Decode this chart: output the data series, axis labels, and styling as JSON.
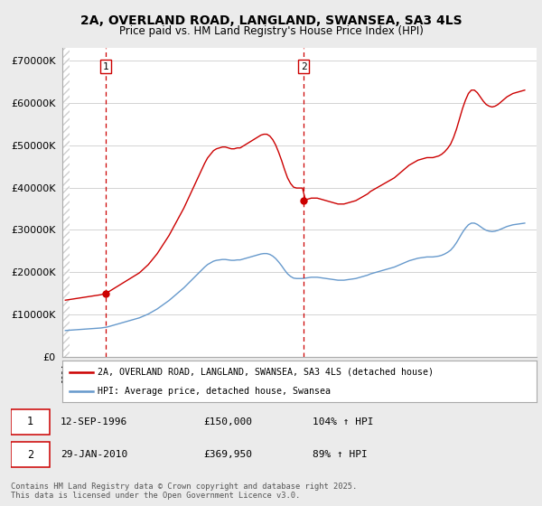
{
  "title": "2A, OVERLAND ROAD, LANGLAND, SWANSEA, SA3 4LS",
  "subtitle": "Price paid vs. HM Land Registry's House Price Index (HPI)",
  "legend_line1": "2A, OVERLAND ROAD, LANGLAND, SWANSEA, SA3 4LS (detached house)",
  "legend_line2": "HPI: Average price, detached house, Swansea",
  "annotation1_date": "12-SEP-1996",
  "annotation1_price": "£150,000",
  "annotation1_hpi": "104% ↑ HPI",
  "annotation2_date": "29-JAN-2010",
  "annotation2_price": "£369,950",
  "annotation2_hpi": "89% ↑ HPI",
  "footnote": "Contains HM Land Registry data © Crown copyright and database right 2025.\nThis data is licensed under the Open Government Licence v3.0.",
  "purchase1_x": 1996.71,
  "purchase1_y": 150000,
  "purchase2_x": 2010.08,
  "purchase2_y": 369950,
  "property_color": "#cc0000",
  "hpi_color": "#6699cc",
  "vline_color": "#cc0000",
  "yticks": [
    0,
    100000,
    200000,
    300000,
    400000,
    500000,
    600000,
    700000
  ],
  "ylim": [
    0,
    730000
  ],
  "xlim_start": 1993.8,
  "xlim_end": 2025.8,
  "background_color": "#ebebeb",
  "plot_bg_color": "#ffffff",
  "grid_color": "#cccccc",
  "hpi_data_years": [
    1994.0,
    1994.2,
    1994.4,
    1994.6,
    1994.8,
    1995.0,
    1995.2,
    1995.4,
    1995.6,
    1995.8,
    1996.0,
    1996.2,
    1996.4,
    1996.6,
    1996.8,
    1997.0,
    1997.2,
    1997.4,
    1997.6,
    1997.8,
    1998.0,
    1998.2,
    1998.4,
    1998.6,
    1998.8,
    1999.0,
    1999.2,
    1999.4,
    1999.6,
    1999.8,
    2000.0,
    2000.2,
    2000.4,
    2000.6,
    2000.8,
    2001.0,
    2001.2,
    2001.4,
    2001.6,
    2001.8,
    2002.0,
    2002.2,
    2002.4,
    2002.6,
    2002.8,
    2003.0,
    2003.2,
    2003.4,
    2003.6,
    2003.8,
    2004.0,
    2004.2,
    2004.4,
    2004.6,
    2004.8,
    2005.0,
    2005.2,
    2005.4,
    2005.6,
    2005.8,
    2006.0,
    2006.2,
    2006.4,
    2006.6,
    2006.8,
    2007.0,
    2007.2,
    2007.4,
    2007.6,
    2007.8,
    2008.0,
    2008.2,
    2008.4,
    2008.6,
    2008.8,
    2009.0,
    2009.2,
    2009.4,
    2009.6,
    2009.8,
    2010.0,
    2010.2,
    2010.4,
    2010.6,
    2010.8,
    2011.0,
    2011.2,
    2011.4,
    2011.6,
    2011.8,
    2012.0,
    2012.2,
    2012.4,
    2012.6,
    2012.8,
    2013.0,
    2013.2,
    2013.4,
    2013.6,
    2013.8,
    2014.0,
    2014.2,
    2014.4,
    2014.6,
    2014.8,
    2015.0,
    2015.2,
    2015.4,
    2015.6,
    2015.8,
    2016.0,
    2016.2,
    2016.4,
    2016.6,
    2016.8,
    2017.0,
    2017.2,
    2017.4,
    2017.6,
    2017.8,
    2018.0,
    2018.2,
    2018.4,
    2018.6,
    2018.8,
    2019.0,
    2019.2,
    2019.4,
    2019.6,
    2019.8,
    2020.0,
    2020.2,
    2020.4,
    2020.6,
    2020.8,
    2021.0,
    2021.2,
    2021.4,
    2021.6,
    2021.8,
    2022.0,
    2022.2,
    2022.4,
    2022.6,
    2022.8,
    2023.0,
    2023.2,
    2023.4,
    2023.6,
    2023.8,
    2024.0,
    2024.2,
    2024.4,
    2024.6,
    2024.8,
    2025.0
  ],
  "hpi_values": [
    62000,
    62500,
    63000,
    63500,
    64000,
    64500,
    65000,
    65500,
    66000,
    66500,
    67000,
    67500,
    68000,
    69000,
    70000,
    72000,
    74000,
    76000,
    78000,
    80000,
    82000,
    84000,
    86000,
    88000,
    90000,
    92000,
    95000,
    98000,
    101000,
    105000,
    109000,
    113000,
    118000,
    123000,
    128000,
    133000,
    139000,
    145000,
    151000,
    157000,
    163000,
    170000,
    177000,
    184000,
    191000,
    198000,
    205000,
    212000,
    218000,
    222000,
    226000,
    228000,
    229000,
    230000,
    230000,
    229000,
    228000,
    228000,
    229000,
    229000,
    231000,
    233000,
    235000,
    237000,
    239000,
    241000,
    243000,
    244000,
    244000,
    242000,
    238000,
    232000,
    224000,
    215000,
    205000,
    196000,
    190000,
    186000,
    185000,
    185000,
    185000,
    186000,
    187000,
    188000,
    188000,
    188000,
    187000,
    186000,
    185000,
    184000,
    183000,
    182000,
    181000,
    181000,
    181000,
    182000,
    183000,
    184000,
    185000,
    187000,
    189000,
    191000,
    193000,
    196000,
    198000,
    200000,
    202000,
    204000,
    206000,
    208000,
    210000,
    212000,
    215000,
    218000,
    221000,
    224000,
    227000,
    229000,
    231000,
    233000,
    234000,
    235000,
    236000,
    236000,
    236000,
    237000,
    238000,
    240000,
    243000,
    247000,
    252000,
    260000,
    270000,
    282000,
    294000,
    304000,
    312000,
    316000,
    316000,
    313000,
    308000,
    303000,
    299000,
    297000,
    296000,
    297000,
    299000,
    302000,
    305000,
    308000,
    310000,
    312000,
    313000,
    314000,
    315000,
    316000
  ]
}
